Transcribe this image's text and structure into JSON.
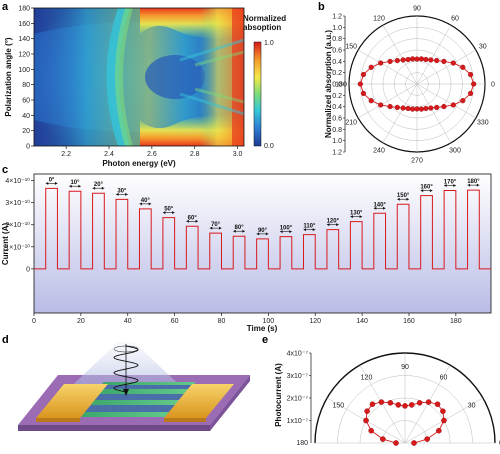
{
  "chart_data": [
    {
      "panel": "a",
      "type": "heatmap",
      "xlabel": "Photon energy (eV)",
      "ylabel": "Polarization angle (°)",
      "xlim": [
        2.05,
        3.03
      ],
      "ylim": [
        0,
        180
      ],
      "xticks": [
        "2.2",
        "2.4",
        "2.6",
        "2.8",
        "3.0"
      ],
      "yticks": [
        "0",
        "20",
        "40",
        "60",
        "80",
        "100",
        "120",
        "140",
        "160",
        "180"
      ],
      "colorbar": {
        "title": "Normalized absoption",
        "max_label": "1.0",
        "min_label": "0.0",
        "colors": [
          "#1f3a93",
          "#2c7bd2",
          "#35c7d8",
          "#7ddc7a",
          "#f2e84a",
          "#f59a2c",
          "#d7191c"
        ]
      }
    },
    {
      "panel": "b",
      "type": "scatter",
      "projection": "polar",
      "ylabel": "Normalized absorption (a.u.)",
      "r_ticks": [
        "0.0",
        "0.2",
        "0.4",
        "0.6",
        "0.8",
        "1.0",
        "1.2"
      ],
      "angle_ticks": [
        "0",
        "30",
        "60",
        "90",
        "120",
        "150",
        "180",
        "210",
        "240",
        "270",
        "300",
        "330"
      ],
      "marker_color": "#d7191c",
      "series": [
        {
          "angles": [
            0,
            10,
            20,
            30,
            40,
            50,
            60,
            70,
            80,
            90,
            100,
            110,
            120,
            130,
            140,
            150,
            160,
            170,
            180,
            190,
            200,
            210,
            220,
            230,
            240,
            250,
            260,
            270,
            280,
            290,
            300,
            310,
            320,
            330,
            340,
            350
          ],
          "r": [
            1.0,
            0.96,
            0.86,
            0.74,
            0.62,
            0.54,
            0.49,
            0.46,
            0.45,
            0.44,
            0.45,
            0.46,
            0.49,
            0.54,
            0.62,
            0.74,
            0.86,
            0.96,
            1.0,
            0.96,
            0.86,
            0.74,
            0.62,
            0.54,
            0.49,
            0.46,
            0.45,
            0.44,
            0.45,
            0.46,
            0.49,
            0.54,
            0.62,
            0.74,
            0.86,
            0.96
          ]
        }
      ]
    },
    {
      "panel": "c",
      "type": "line",
      "xlabel": "Time (s)",
      "ylabel": "Current (A)",
      "xlim": [
        0,
        195
      ],
      "ylim": [
        -2e-10,
        4.3e-10
      ],
      "xticks": [
        "0",
        "20",
        "40",
        "60",
        "80",
        "100",
        "120",
        "140",
        "160",
        "180"
      ],
      "yticks": [
        "0",
        "1×10⁻¹⁰",
        "2×10⁻¹⁰",
        "3×10⁻¹⁰",
        "4×10⁻¹⁰"
      ],
      "line_color": "#d7191c",
      "pulses": [
        {
          "start": 5,
          "end": 10,
          "on": 3.65e-10,
          "label": "0°"
        },
        {
          "start": 15,
          "end": 20,
          "on": 3.52e-10,
          "label": "10°"
        },
        {
          "start": 25,
          "end": 30,
          "on": 3.43e-10,
          "label": "20°"
        },
        {
          "start": 35,
          "end": 40,
          "on": 3.15e-10,
          "label": "30°"
        },
        {
          "start": 45,
          "end": 50,
          "on": 2.72e-10,
          "label": "40°"
        },
        {
          "start": 55,
          "end": 60,
          "on": 2.32e-10,
          "label": "50°"
        },
        {
          "start": 65,
          "end": 70,
          "on": 1.93e-10,
          "label": "60°"
        },
        {
          "start": 75,
          "end": 80,
          "on": 1.62e-10,
          "label": "70°"
        },
        {
          "start": 85,
          "end": 90,
          "on": 1.48e-10,
          "label": "80°"
        },
        {
          "start": 95,
          "end": 100,
          "on": 1.36e-10,
          "label": "90°"
        },
        {
          "start": 105,
          "end": 110,
          "on": 1.46e-10,
          "label": "100°"
        },
        {
          "start": 115,
          "end": 120,
          "on": 1.55e-10,
          "label": "110°"
        },
        {
          "start": 125,
          "end": 130,
          "on": 1.78e-10,
          "label": "120°"
        },
        {
          "start": 135,
          "end": 140,
          "on": 2.14e-10,
          "label": "130°"
        },
        {
          "start": 145,
          "end": 150,
          "on": 2.52e-10,
          "label": "140°"
        },
        {
          "start": 155,
          "end": 160,
          "on": 2.93e-10,
          "label": "150°"
        },
        {
          "start": 165,
          "end": 170,
          "on": 3.32e-10,
          "label": "160°"
        },
        {
          "start": 175,
          "end": 180,
          "on": 3.55e-10,
          "label": "170°"
        },
        {
          "start": 185,
          "end": 190,
          "on": 3.57e-10,
          "label": "180°"
        }
      ]
    },
    {
      "panel": "d",
      "type": "diagram"
    },
    {
      "panel": "e",
      "type": "scatter",
      "projection": "polar",
      "ylabel": "Photocurrent (A)",
      "r_ticks": [
        "0",
        "1x10⁻⁷",
        "2x10⁻⁷",
        "3x10⁻⁷",
        "4x10⁻⁷"
      ],
      "angle_ticks": [
        "0",
        "30",
        "60",
        "90",
        "120",
        "150",
        "180"
      ],
      "marker_color": "#d7191c",
      "series": [
        {
          "angles": [
            0,
            10,
            20,
            30,
            40,
            50,
            60,
            70,
            80,
            90,
            100,
            110,
            120,
            130,
            140,
            150,
            160,
            170,
            180
          ],
          "r": [
            4e-08,
            1e-07,
            1.6e-07,
            2e-07,
            2.2e-07,
            2.25e-07,
            2.1e-07,
            1.9e-07,
            1.72e-07,
            1.65e-07,
            1.72e-07,
            1.9e-07,
            2.1e-07,
            2.25e-07,
            2.2e-07,
            2e-07,
            1.6e-07,
            1e-07,
            4e-08
          ]
        }
      ]
    }
  ]
}
